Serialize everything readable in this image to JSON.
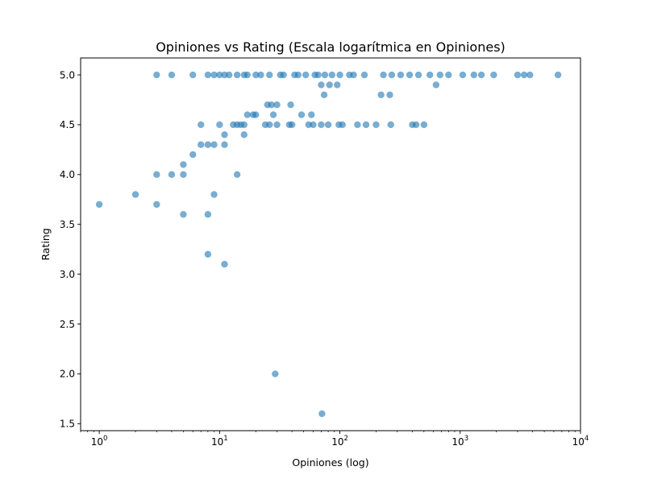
{
  "chart_data": {
    "type": "scatter",
    "title": "Opiniones vs Rating (Escala logarítmica en Opiniones)",
    "xlabel": "Opiniones (log)",
    "ylabel": "Rating",
    "xscale": "log",
    "xlim": [
      0.7,
      10000
    ],
    "ylim": [
      1.43,
      5.17
    ],
    "xticks": [
      {
        "base": "10",
        "exp": "0",
        "value": 1
      },
      {
        "base": "10",
        "exp": "1",
        "value": 10
      },
      {
        "base": "10",
        "exp": "2",
        "value": 100
      },
      {
        "base": "10",
        "exp": "3",
        "value": 1000
      },
      {
        "base": "10",
        "exp": "4",
        "value": 10000
      }
    ],
    "yticks": [
      "1.5",
      "2.0",
      "2.5",
      "3.0",
      "3.5",
      "4.0",
      "4.5",
      "5.0"
    ],
    "grid": false,
    "marker_color": "#1f77b4",
    "marker_alpha": 0.6,
    "points": [
      [
        1,
        3.7
      ],
      [
        2,
        3.8
      ],
      [
        3,
        4.0
      ],
      [
        3,
        3.7
      ],
      [
        3,
        5.0
      ],
      [
        4,
        4.0
      ],
      [
        4,
        5.0
      ],
      [
        5,
        4.1
      ],
      [
        5,
        4.0
      ],
      [
        5,
        3.6
      ],
      [
        6,
        4.2
      ],
      [
        6,
        5.0
      ],
      [
        7,
        4.3
      ],
      [
        7,
        4.5
      ],
      [
        8,
        4.3
      ],
      [
        8,
        3.6
      ],
      [
        8,
        3.2
      ],
      [
        8,
        5.0
      ],
      [
        9,
        3.8
      ],
      [
        9,
        4.3
      ],
      [
        9,
        5.0
      ],
      [
        10,
        4.5
      ],
      [
        10,
        5.0
      ],
      [
        11,
        4.4
      ],
      [
        11,
        4.3
      ],
      [
        11,
        3.1
      ],
      [
        11,
        5.0
      ],
      [
        12,
        5.0
      ],
      [
        13,
        4.5
      ],
      [
        14,
        4.0
      ],
      [
        14,
        4.5
      ],
      [
        14,
        5.0
      ],
      [
        15,
        4.5
      ],
      [
        16,
        4.5
      ],
      [
        16,
        4.4
      ],
      [
        16,
        5.0
      ],
      [
        17,
        4.6
      ],
      [
        17,
        5.0
      ],
      [
        19,
        4.6
      ],
      [
        20,
        4.6
      ],
      [
        20,
        5.0
      ],
      [
        22,
        5.0
      ],
      [
        24,
        4.5
      ],
      [
        25,
        4.7
      ],
      [
        26,
        4.5
      ],
      [
        26,
        5.0
      ],
      [
        27,
        4.7
      ],
      [
        28,
        4.6
      ],
      [
        29,
        2.0
      ],
      [
        30,
        4.7
      ],
      [
        30,
        4.5
      ],
      [
        32,
        5.0
      ],
      [
        34,
        5.0
      ],
      [
        38,
        4.5
      ],
      [
        39,
        4.7
      ],
      [
        40,
        4.5
      ],
      [
        42,
        5.0
      ],
      [
        45,
        5.0
      ],
      [
        48,
        4.6
      ],
      [
        52,
        5.0
      ],
      [
        55,
        4.5
      ],
      [
        58,
        4.6
      ],
      [
        60,
        4.5
      ],
      [
        62,
        5.0
      ],
      [
        66,
        5.0
      ],
      [
        70,
        4.9
      ],
      [
        70,
        4.5
      ],
      [
        71,
        1.6
      ],
      [
        74,
        4.8
      ],
      [
        75,
        5.0
      ],
      [
        80,
        4.5
      ],
      [
        82,
        4.9
      ],
      [
        86,
        5.0
      ],
      [
        95,
        4.9
      ],
      [
        98,
        4.5
      ],
      [
        100,
        5.0
      ],
      [
        105,
        4.5
      ],
      [
        120,
        5.0
      ],
      [
        130,
        5.0
      ],
      [
        140,
        4.5
      ],
      [
        160,
        5.0
      ],
      [
        165,
        4.5
      ],
      [
        200,
        4.5
      ],
      [
        220,
        4.8
      ],
      [
        230,
        5.0
      ],
      [
        260,
        4.8
      ],
      [
        265,
        4.5
      ],
      [
        270,
        5.0
      ],
      [
        320,
        5.0
      ],
      [
        380,
        5.0
      ],
      [
        400,
        4.5
      ],
      [
        430,
        4.5
      ],
      [
        450,
        5.0
      ],
      [
        500,
        4.5
      ],
      [
        560,
        5.0
      ],
      [
        630,
        4.9
      ],
      [
        680,
        5.0
      ],
      [
        800,
        5.0
      ],
      [
        1050,
        5.0
      ],
      [
        1300,
        5.0
      ],
      [
        1500,
        5.0
      ],
      [
        1900,
        5.0
      ],
      [
        3000,
        5.0
      ],
      [
        3400,
        5.0
      ],
      [
        3800,
        5.0
      ],
      [
        6500,
        5.0
      ]
    ]
  }
}
